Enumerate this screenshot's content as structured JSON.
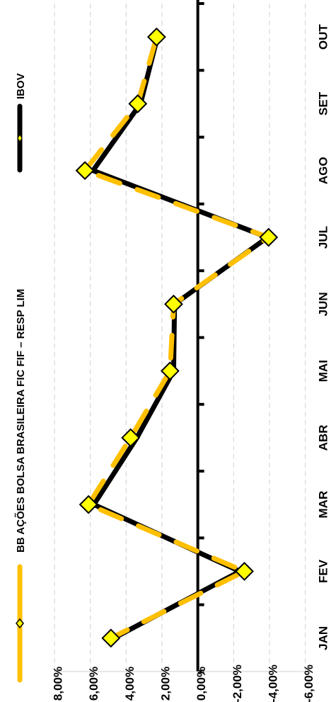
{
  "chart_data": {
    "type": "line",
    "orientation": "rotated-90-ccw",
    "categories": [
      "JAN",
      "FEV",
      "MAR",
      "ABR",
      "MAI",
      "JUN",
      "JUL",
      "AGO",
      "SET",
      "OUT"
    ],
    "y_ticks": [
      "8,00%",
      "6,00%",
      "4,00%",
      "2,00%",
      "0,00%",
      "-2,00%",
      "-4,00%",
      "-6,00%"
    ],
    "ylim": [
      -6,
      8
    ],
    "grid": true,
    "legend_position": "top",
    "series": [
      {
        "name": "BB AÇÕES BOLSA BRASILEIRA FIC FIF – RESP LIM",
        "values": [
          4.85,
          -2.6,
          6.1,
          3.75,
          1.55,
          1.35,
          -3.95,
          6.3,
          3.35,
          2.3
        ],
        "color": "#FFC000",
        "marker": "diamond",
        "marker_color": "#FFFF00"
      },
      {
        "name": "IBOV",
        "values": [
          4.7,
          -2.35,
          5.8,
          3.4,
          1.35,
          1.3,
          -3.9,
          5.85,
          3.2,
          2.25
        ],
        "color": "#000000",
        "marker": "none"
      }
    ],
    "title": "",
    "xlabel": "",
    "ylabel": ""
  }
}
